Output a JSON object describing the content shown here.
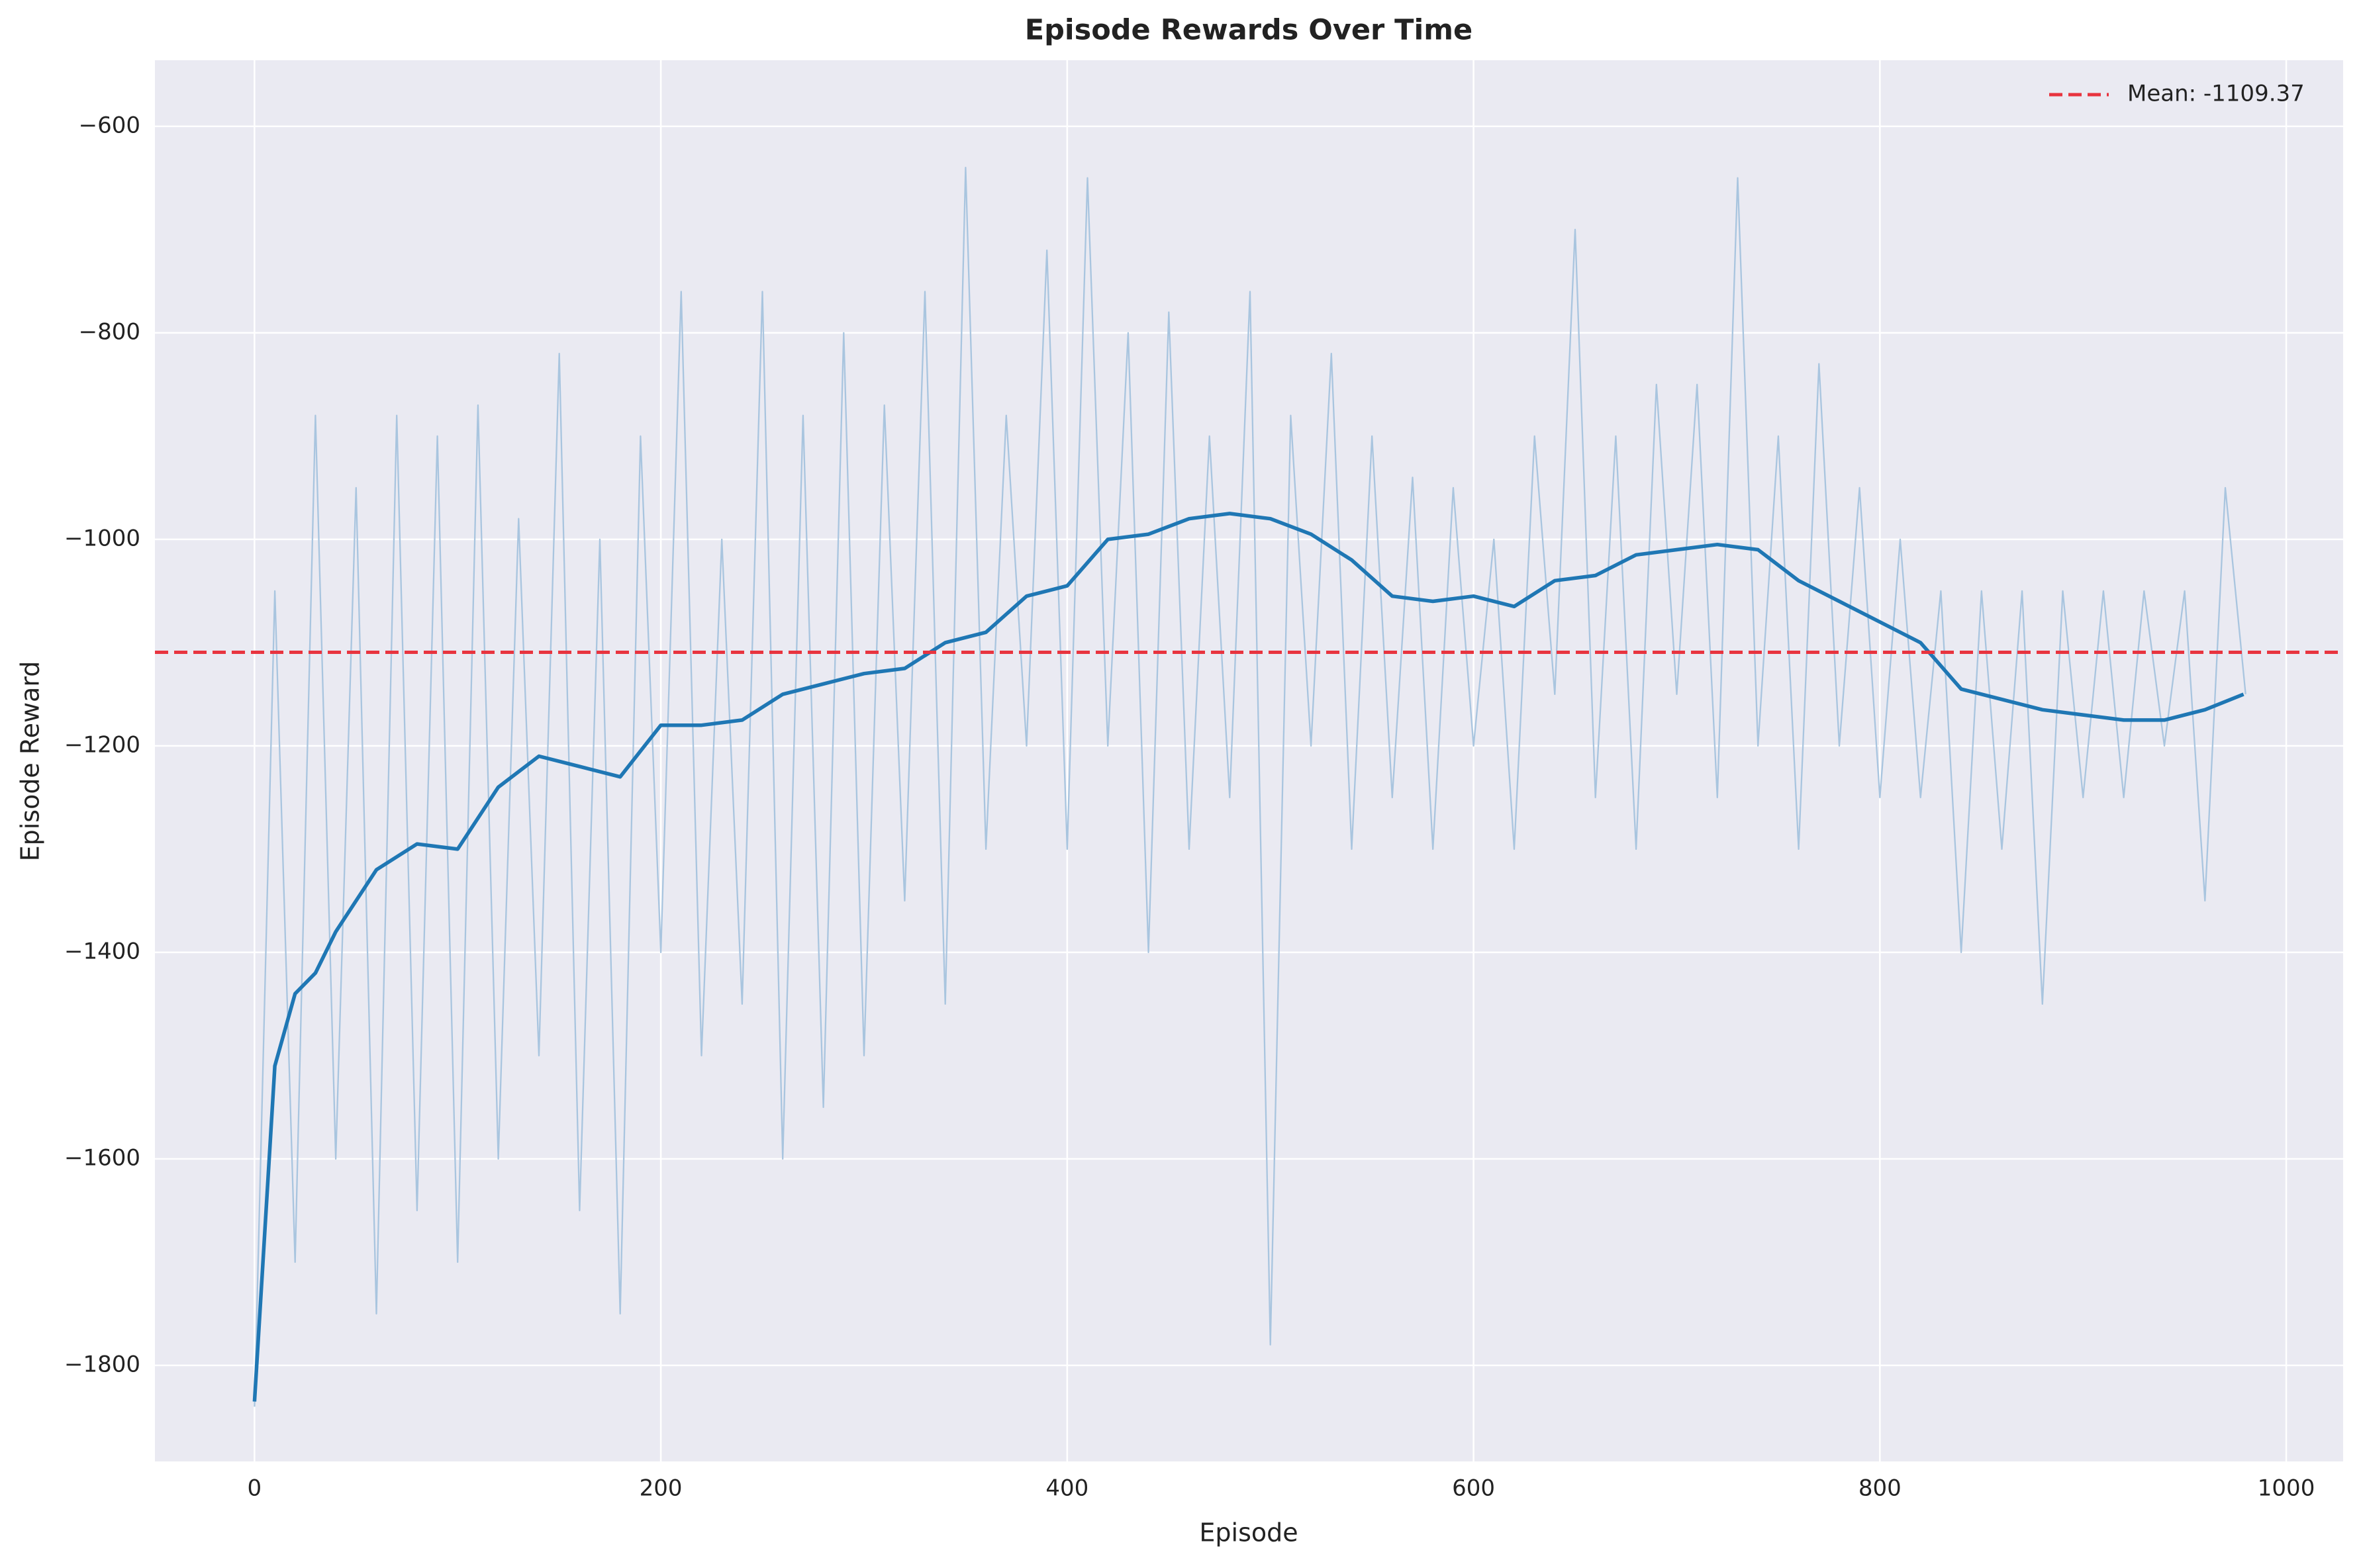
{
  "chart_data": {
    "type": "line",
    "title": "Episode Rewards Over Time",
    "xlabel": "Episode",
    "ylabel": "Episode Reward",
    "xlim": [
      -49,
      1028
    ],
    "ylim": [
      -1893,
      -536
    ],
    "xticks": [
      0,
      200,
      400,
      600,
      800,
      1000
    ],
    "yticks": [
      {
        "value": -1800,
        "label": "−1800"
      },
      {
        "value": -1600,
        "label": "−1600"
      },
      {
        "value": -1400,
        "label": "−1400"
      },
      {
        "value": -1200,
        "label": "−1200"
      },
      {
        "value": -1000,
        "label": "−1000"
      },
      {
        "value": -800,
        "label": "−800"
      },
      {
        "value": -600,
        "label": "−600"
      }
    ],
    "grid": true,
    "legend": "upper right",
    "series": [
      {
        "color": "#a9c5df",
        "width": 2.3,
        "x": [
          0,
          10,
          20,
          30,
          40,
          50,
          60,
          70,
          80,
          90,
          100,
          110,
          120,
          130,
          140,
          150,
          160,
          170,
          180,
          190,
          200,
          210,
          220,
          230,
          240,
          250,
          260,
          270,
          280,
          290,
          300,
          310,
          320,
          330,
          340,
          350,
          360,
          370,
          380,
          390,
          400,
          410,
          420,
          430,
          440,
          450,
          460,
          470,
          480,
          490,
          500,
          510,
          520,
          530,
          540,
          550,
          560,
          570,
          580,
          590,
          600,
          610,
          620,
          630,
          640,
          650,
          660,
          670,
          680,
          690,
          700,
          710,
          720,
          730,
          740,
          750,
          760,
          770,
          780,
          790,
          800,
          810,
          820,
          830,
          840,
          850,
          860,
          870,
          880,
          890,
          900,
          910,
          920,
          930,
          940,
          950,
          960,
          970,
          980
        ],
        "values": [
          -1840,
          -1050,
          -1700,
          -880,
          -1600,
          -950,
          -1750,
          -880,
          -1650,
          -900,
          -1700,
          -870,
          -1600,
          -980,
          -1500,
          -820,
          -1650,
          -1000,
          -1750,
          -900,
          -1400,
          -760,
          -1500,
          -1000,
          -1450,
          -760,
          -1600,
          -880,
          -1550,
          -800,
          -1500,
          -870,
          -1350,
          -760,
          -1450,
          -640,
          -1300,
          -880,
          -1200,
          -720,
          -1300,
          -650,
          -1200,
          -800,
          -1400,
          -780,
          -1300,
          -900,
          -1250,
          -760,
          -1780,
          -880,
          -1200,
          -820,
          -1300,
          -900,
          -1250,
          -940,
          -1300,
          -950,
          -1200,
          -1000,
          -1300,
          -900,
          -1150,
          -700,
          -1250,
          -900,
          -1300,
          -850,
          -1150,
          -850,
          -1250,
          -650,
          -1200,
          -900,
          -1300,
          -830,
          -1200,
          -950,
          -1250,
          -1000,
          -1250,
          -1050,
          -1400,
          -1050,
          -1300,
          -1050,
          -1450,
          -1050,
          -1250,
          -1050,
          -1250,
          -1050,
          -1200,
          -1050,
          -1350,
          -950,
          -1150
        ]
      },
      {
        "color": "#1f77b4",
        "width": 5.5,
        "x": [
          0,
          10,
          20,
          30,
          40,
          60,
          80,
          100,
          120,
          140,
          160,
          180,
          200,
          220,
          240,
          260,
          280,
          300,
          320,
          340,
          360,
          380,
          400,
          420,
          440,
          460,
          480,
          500,
          520,
          540,
          560,
          580,
          600,
          620,
          640,
          660,
          680,
          700,
          720,
          740,
          760,
          780,
          800,
          820,
          840,
          860,
          880,
          900,
          920,
          940,
          960,
          979
        ],
        "values": [
          -1835,
          -1510,
          -1440,
          -1420,
          -1380,
          -1320,
          -1295,
          -1300,
          -1240,
          -1210,
          -1220,
          -1230,
          -1180,
          -1180,
          -1175,
          -1150,
          -1140,
          -1130,
          -1125,
          -1100,
          -1090,
          -1055,
          -1045,
          -1000,
          -995,
          -980,
          -975,
          -980,
          -995,
          -1020,
          -1055,
          -1060,
          -1055,
          -1065,
          -1040,
          -1035,
          -1015,
          -1010,
          -1005,
          -1010,
          -1040,
          -1060,
          -1080,
          -1100,
          -1145,
          -1155,
          -1165,
          -1170,
          -1175,
          -1175,
          -1165,
          -1150
        ]
      }
    ],
    "mean_line": {
      "value": -1109.37,
      "label": "Mean: -1109.37",
      "color": "#e8343f"
    }
  }
}
